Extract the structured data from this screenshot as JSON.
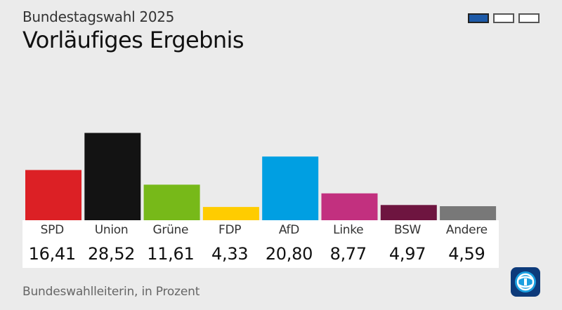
{
  "header": {
    "subtitle": "Bundestagswahl 2025",
    "title": "Vorläufiges Ergebnis"
  },
  "pager": {
    "pages": 3,
    "active": 0
  },
  "chart_data": {
    "type": "bar",
    "categories": [
      "SPD",
      "Union",
      "Grüne",
      "FDP",
      "AfD",
      "Linke",
      "BSW",
      "Andere"
    ],
    "values": [
      16.41,
      28.52,
      11.61,
      4.33,
      20.8,
      8.77,
      4.97,
      4.59
    ],
    "value_labels": [
      "16,41",
      "28,52",
      "11,61",
      "4,33",
      "20,80",
      "8,77",
      "4,97",
      "4,59"
    ],
    "colors": [
      "#dc2025",
      "#131313",
      "#77b919",
      "#ffcc00",
      "#009fe2",
      "#c2307f",
      "#6e1540",
      "#787878"
    ],
    "ylim": [
      0,
      30
    ],
    "unit": "Prozent",
    "grid": false
  },
  "footer": {
    "source": "Bundeswahlleiterin, in Prozent"
  },
  "logo": {
    "icon": "tagesschau-logo-icon"
  }
}
